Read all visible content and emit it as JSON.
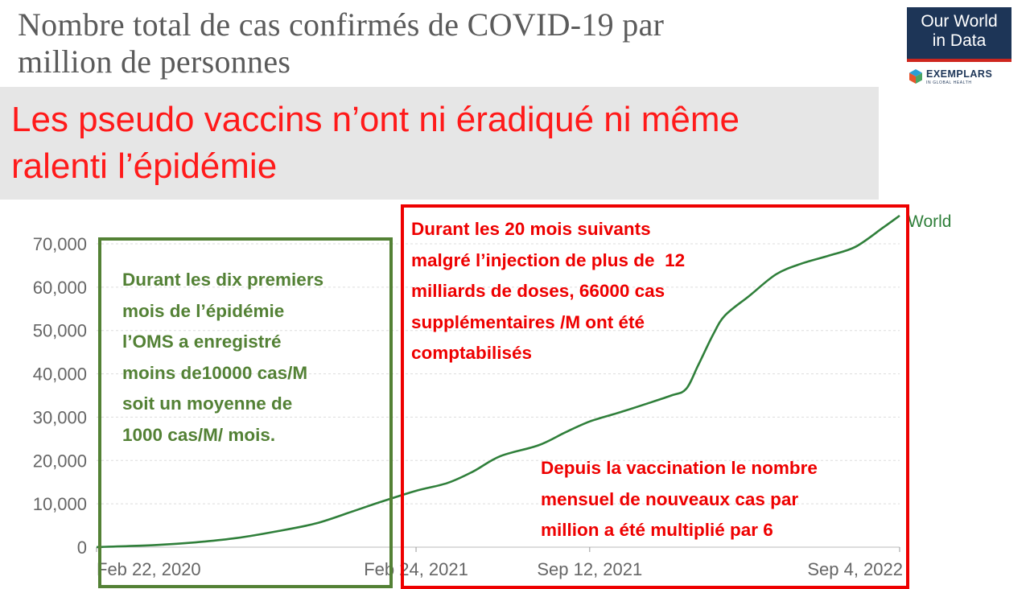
{
  "chart_data": {
    "type": "line",
    "title_lines": [
      "Nombre total de cas confirmés de COVID-19 par",
      "million de personnes"
    ],
    "y_ticks": [
      0,
      10000,
      20000,
      30000,
      40000,
      50000,
      60000,
      70000
    ],
    "y_tick_labels": [
      "0",
      "10,000",
      "20,000",
      "30,000",
      "40,000",
      "50,000",
      "60,000",
      "70,000"
    ],
    "ylim": [
      0,
      75000
    ],
    "x_range": [
      "2020-02-22",
      "2022-09-04"
    ],
    "x_ticks": [
      "Feb 22, 2020",
      "Feb 24, 2021",
      "Sep 12, 2021",
      "Sep 4, 2022"
    ],
    "grid": "horizontal dashed",
    "series": [
      {
        "name": "World",
        "color": "#2f7f3a",
        "x": [
          "2020-02-22",
          "2020-05-01",
          "2020-06-15",
          "2020-08-01",
          "2020-09-15",
          "2020-11-01",
          "2020-12-15",
          "2021-01-15",
          "2021-02-24",
          "2021-04-01",
          "2021-05-01",
          "2021-06-01",
          "2021-07-15",
          "2021-08-15",
          "2021-09-12",
          "2021-10-15",
          "2021-11-15",
          "2021-12-15",
          "2022-01-01",
          "2022-01-15",
          "2022-02-01",
          "2022-02-15",
          "2022-03-15",
          "2022-04-15",
          "2022-05-15",
          "2022-06-15",
          "2022-07-15",
          "2022-08-15",
          "2022-09-04"
        ],
        "y": [
          10,
          500,
          1100,
          2100,
          3600,
          5500,
          8400,
          10500,
          13000,
          14800,
          17500,
          21000,
          23500,
          26500,
          29000,
          31000,
          33000,
          35000,
          36500,
          42000,
          49000,
          53500,
          58000,
          63000,
          65500,
          67300,
          69300,
          73600,
          76500
        ]
      }
    ]
  },
  "banner": {
    "lines": [
      "Les pseudo vaccins n’ont ni éradiqué ni même",
      "ralenti l’épidémie"
    ]
  },
  "logo": {
    "line1": "Our World",
    "line2": "in Data",
    "partner": "EXEMPLARS",
    "partner_sub": "IN GLOBAL HEALTH"
  },
  "annotations": {
    "green_lines": [
      "Durant les dix premiers",
      "mois de l’épidémie",
      "l’OMS a enregistré",
      "moins de10000 cas/M",
      "soit un moyenne de",
      "1000 cas/M/ mois."
    ],
    "red_top_lines": [
      "Durant les 20 mois suivants",
      "malgré l’injection de plus de  12",
      "milliards de doses, 66000 cas",
      "supplémentaires /M ont été",
      "comptabilisés"
    ],
    "red_bottom_lines": [
      "Depuis la vaccination le nombre",
      "mensuel de nouveaux cas par",
      "million a été multiplié par 6"
    ]
  },
  "colors": {
    "series": "#2f7f3a",
    "green_box": "#538135",
    "red_box": "#ee0000",
    "banner_text": "#ff1a1a",
    "banner_bg": "#e6e6e6"
  }
}
